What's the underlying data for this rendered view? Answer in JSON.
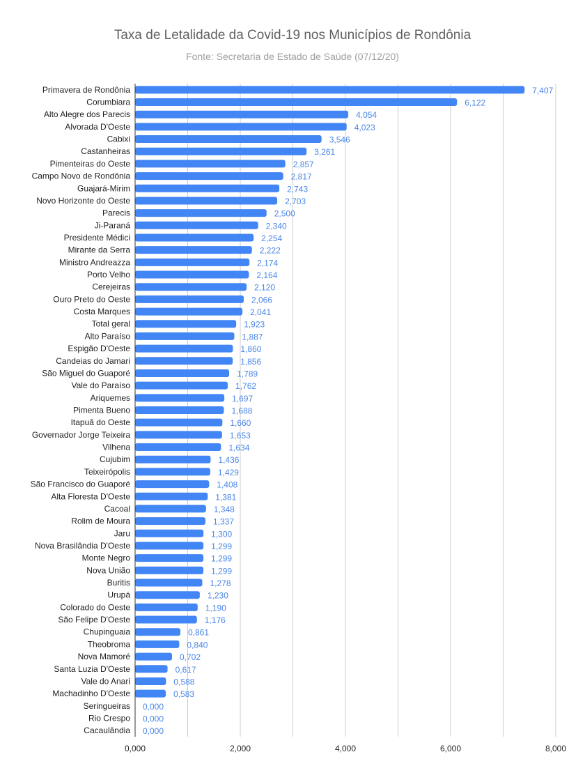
{
  "colors": {
    "bar": "#4285f4",
    "value_label": "#4a86e8",
    "grid": "#cccccc",
    "axis": "#333333"
  },
  "chart_data": {
    "type": "bar",
    "orientation": "horizontal",
    "title": "Taxa de Letalidade da Covid-19 nos Municípios de Rondônia",
    "subtitle": "Fonte: Secretaria de Estado de Saúde (07/12/20)",
    "xlim": [
      0,
      8
    ],
    "x_ticks": [
      0,
      2,
      4,
      6,
      8
    ],
    "x_tick_labels": [
      "0,000",
      "2,000",
      "4,000",
      "6,000",
      "8,000"
    ],
    "grid": true,
    "categories": [
      "Primavera de Rondônia",
      "Corumbiara",
      "Alto Alegre dos Parecis",
      "Alvorada D'Oeste",
      "Cabixi",
      "Castanheiras",
      "Pimenteiras do Oeste",
      "Campo Novo de Rondônia",
      "Guajará-Mirim",
      "Novo Horizonte do Oeste",
      "Parecis",
      "Ji-Paraná",
      "Presidente Médici",
      "Mirante da Serra",
      "Ministro Andreazza",
      "Porto Velho",
      "Cerejeiras",
      "Ouro Preto do Oeste",
      "Costa Marques",
      "Total geral",
      "Alto Paraíso",
      "Espigão D'Oeste",
      "Candeias do Jamari",
      "São Miguel do Guaporé",
      "Vale do Paraíso",
      "Ariquemes",
      "Pimenta Bueno",
      "Itapuã do Oeste",
      "Governador Jorge Teixeira",
      "Vilhena",
      "Cujubim",
      "Teixeirópolis",
      "São Francisco do Guaporé",
      "Alta Floresta D'Oeste",
      "Cacoal",
      "Rolim de Moura",
      "Jaru",
      "Nova Brasilândia D'Oeste",
      "Monte Negro",
      "Nova União",
      "Buritis",
      "Urupá",
      "Colorado do Oeste",
      "São Felipe D'Oeste",
      "Chupinguaia",
      "Theobroma",
      "Nova Mamoré",
      "Santa Luzia D'Oeste",
      "Vale do Anari",
      "Machadinho D'Oeste",
      "Seringueiras",
      "Rio Crespo",
      "Cacaulândia"
    ],
    "values": [
      7.407,
      6.122,
      4.054,
      4.023,
      3.546,
      3.261,
      2.857,
      2.817,
      2.743,
      2.703,
      2.5,
      2.34,
      2.254,
      2.222,
      2.174,
      2.164,
      2.12,
      2.066,
      2.041,
      1.923,
      1.887,
      1.86,
      1.856,
      1.789,
      1.762,
      1.697,
      1.688,
      1.66,
      1.653,
      1.634,
      1.436,
      1.429,
      1.408,
      1.381,
      1.348,
      1.337,
      1.3,
      1.299,
      1.299,
      1.299,
      1.278,
      1.23,
      1.19,
      1.176,
      0.861,
      0.84,
      0.702,
      0.617,
      0.588,
      0.583,
      0,
      0,
      0
    ],
    "value_labels": [
      "7,407",
      "6,122",
      "4,054",
      "4,023",
      "3,546",
      "3,261",
      "2,857",
      "2,817",
      "2,743",
      "2,703",
      "2,500",
      "2,340",
      "2,254",
      "2,222",
      "2,174",
      "2,164",
      "2,120",
      "2,066",
      "2,041",
      "1,923",
      "1,887",
      "1,860",
      "1,856",
      "1,789",
      "1,762",
      "1,697",
      "1,688",
      "1,660",
      "1,653",
      "1,634",
      "1,436",
      "1,429",
      "1,408",
      "1,381",
      "1,348",
      "1,337",
      "1,300",
      "1,299",
      "1,299",
      "1,299",
      "1,278",
      "1,230",
      "1,190",
      "1,176",
      "0,861",
      "0,840",
      "0,702",
      "0,617",
      "0,588",
      "0,583",
      "0,000",
      "0,000",
      "0,000"
    ]
  }
}
